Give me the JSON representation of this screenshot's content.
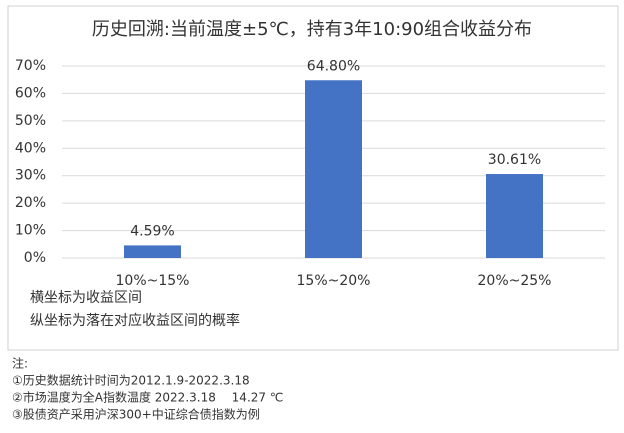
{
  "chart_data": {
    "type": "bar",
    "title": "历史回溯:当前温度±5℃，持有3年10:90组合收益分布",
    "categories": [
      "10%~15%",
      "15%~20%",
      "20%~25%"
    ],
    "values": [
      4.59,
      64.8,
      30.61
    ],
    "value_labels": [
      "4.59%",
      "64.80%",
      "30.61%"
    ],
    "color": "#4472c4",
    "ylim": [
      0,
      70
    ],
    "yticks": [
      {
        "value": 0,
        "label": "0%"
      },
      {
        "value": 10,
        "label": "10%"
      },
      {
        "value": 20,
        "label": "20%"
      },
      {
        "value": 30,
        "label": "30%"
      },
      {
        "value": 40,
        "label": "40%"
      },
      {
        "value": 50,
        "label": "50%"
      },
      {
        "value": 60,
        "label": "60%"
      },
      {
        "value": 70,
        "label": "70%"
      }
    ],
    "grid": true,
    "annotations": [
      "横坐标为收益区间",
      "纵坐标为落在对应收益区间的概率"
    ]
  },
  "notes": {
    "heading": "注:",
    "items": [
      "①历史数据统计时间为2012.1.9-2022.3.18",
      "②市场温度为全A指数温度 2022.3.18　 14.27 ℃",
      "③股债资产采用沪深300+中证综合债指数为例"
    ]
  }
}
